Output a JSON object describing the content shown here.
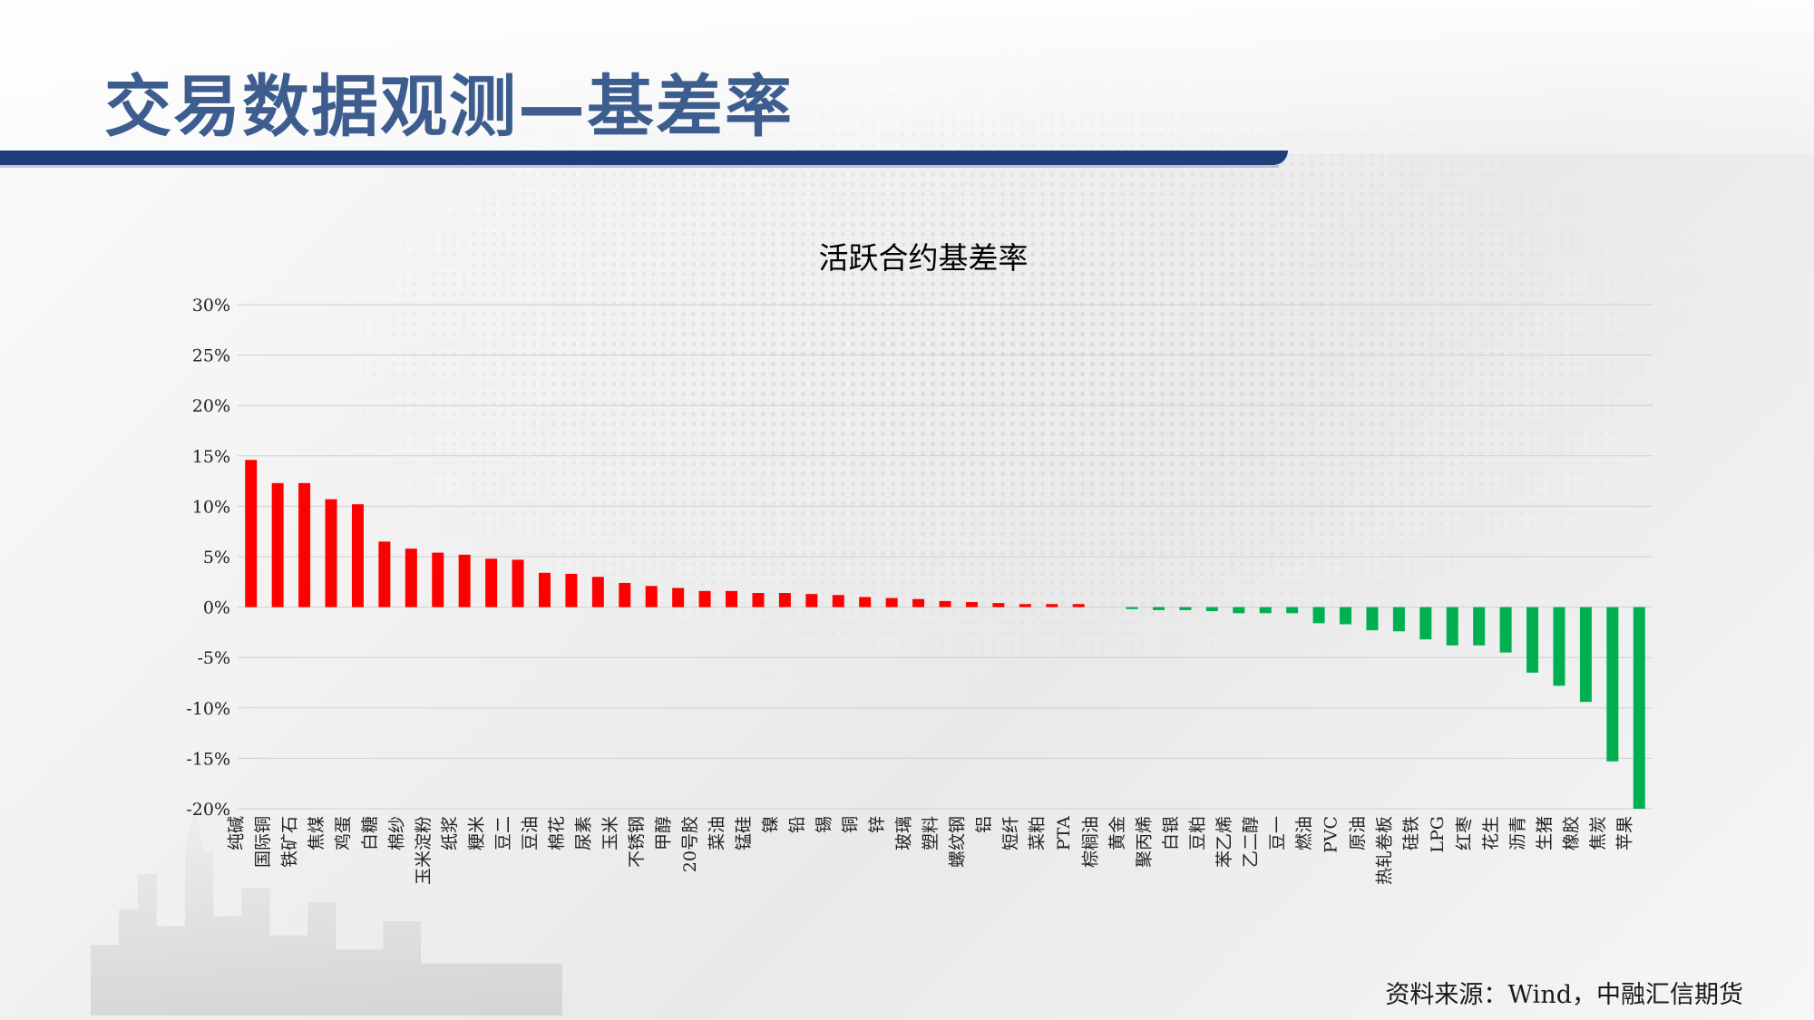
{
  "page_title": "交易数据观测—基差率",
  "source_note": "资料来源：Wind，中融汇信期货",
  "colors": {
    "positive": "#ff0000",
    "negative": "#00b050",
    "title_blue": "#3e5d8f",
    "rule_navy": "#1f3f7a"
  },
  "chart_data": {
    "type": "bar",
    "title": "活跃合约基差率",
    "xlabel": "",
    "ylabel": "",
    "ylim": [
      -0.2,
      0.3
    ],
    "yticks": [
      0.3,
      0.25,
      0.2,
      0.15,
      0.1,
      0.05,
      0.0,
      -0.05,
      -0.1,
      -0.15,
      -0.2
    ],
    "ytick_labels": [
      "30%",
      "25%",
      "20%",
      "15%",
      "10%",
      "5%",
      "0%",
      "-5%",
      "-10%",
      "-15%",
      "-20%"
    ],
    "grid": true,
    "legend": "none",
    "categories": [
      "纯碱",
      "国际铜",
      "铁矿石",
      "焦煤",
      "鸡蛋",
      "白糖",
      "棉纱",
      "玉米淀粉",
      "纸浆",
      "粳米",
      "豆二",
      "豆油",
      "棉花",
      "尿素",
      "玉米",
      "不锈钢",
      "甲醇",
      "20号胶",
      "菜油",
      "锰硅",
      "镍",
      "铅",
      "锡",
      "铜",
      "锌",
      "玻璃",
      "塑料",
      "螺纹钢",
      "铝",
      "短纤",
      "菜粕",
      "PTA",
      "棕榈油",
      "黄金",
      "聚丙烯",
      "白银",
      "豆粕",
      "苯乙烯",
      "乙二醇",
      "豆一",
      "燃油",
      "PVC",
      "原油",
      "热轧卷板",
      "硅铁",
      "LPG",
      "红枣",
      "花生",
      "沥青",
      "生猪",
      "橡胶",
      "焦炭",
      "苹果"
    ],
    "values": [
      0.146,
      0.123,
      0.123,
      0.107,
      0.102,
      0.065,
      0.058,
      0.054,
      0.052,
      0.048,
      0.047,
      0.034,
      0.033,
      0.03,
      0.024,
      0.021,
      0.019,
      0.016,
      0.016,
      0.014,
      0.014,
      0.013,
      0.012,
      0.01,
      0.009,
      0.008,
      0.006,
      0.005,
      0.004,
      0.003,
      0.003,
      0.003,
      0.0,
      -0.002,
      -0.003,
      -0.003,
      -0.004,
      -0.006,
      -0.006,
      -0.006,
      -0.016,
      -0.017,
      -0.023,
      -0.024,
      -0.032,
      -0.038,
      -0.038,
      -0.045,
      -0.065,
      -0.078,
      -0.094,
      -0.153,
      -0.2
    ]
  }
}
